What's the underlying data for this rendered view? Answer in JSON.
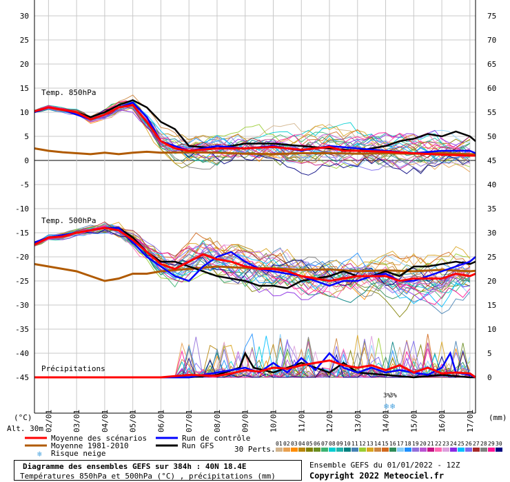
{
  "chart_data": {
    "type": "line",
    "title": "Diagramme des ensembles GEFS sur 384h : 40N 18.4E",
    "subtitle": "Températures 850hPa et 500hPa (°C) , précipitations (mm)",
    "left_axis": {
      "unit": "(°C)",
      "ticks": [
        30,
        25,
        20,
        15,
        10,
        5,
        0,
        -5,
        -10,
        -15,
        -20,
        -25,
        -30,
        -35,
        -40,
        -45
      ],
      "range": [
        -45,
        30
      ]
    },
    "right_axis": {
      "unit": "(mm)",
      "ticks": [
        75,
        70,
        65,
        60,
        55,
        50,
        45,
        40,
        35,
        30,
        25,
        20,
        15,
        10,
        5,
        0
      ],
      "range": [
        0,
        75
      ]
    },
    "altitude": "Alt. 30m",
    "x_ticks": [
      "02/01",
      "03/01",
      "04/01",
      "05/01",
      "06/01",
      "07/01",
      "08/01",
      "09/01",
      "10/01",
      "11/01",
      "12/01",
      "13/01",
      "14/01",
      "15/01",
      "16/01",
      "17/01"
    ],
    "x_range_days": [
      1.5,
      17.2
    ],
    "panel_labels": {
      "t850": "Temp. 850hPa",
      "t500": "Temp. 500hPa",
      "precip": "Précipitations"
    },
    "snow_marker": {
      "label": "3%",
      "day": 14.3
    },
    "series": [
      {
        "name": "Moyenne des scénarios",
        "color": "#ff0000",
        "width": 3,
        "t850": [
          [
            1.5,
            10.2
          ],
          [
            2,
            11
          ],
          [
            2.5,
            10.5
          ],
          [
            3,
            10
          ],
          [
            3.5,
            8.5
          ],
          [
            4,
            9.5
          ],
          [
            4.5,
            11
          ],
          [
            5,
            11.5
          ],
          [
            5.5,
            8
          ],
          [
            6,
            4
          ],
          [
            6.5,
            2.5
          ],
          [
            7,
            2
          ],
          [
            8,
            2.5
          ],
          [
            9,
            2.5
          ],
          [
            10,
            2.8
          ],
          [
            11,
            2.2
          ],
          [
            12,
            2.8
          ],
          [
            12.5,
            2
          ],
          [
            13,
            2
          ],
          [
            14,
            1.8
          ],
          [
            15,
            1.5
          ],
          [
            16,
            1.2
          ],
          [
            17,
            1
          ],
          [
            17.2,
            1
          ]
        ],
        "t500": [
          [
            1.5,
            -17.5
          ],
          [
            2,
            -16
          ],
          [
            2.5,
            -15.8
          ],
          [
            3,
            -15
          ],
          [
            3.5,
            -14.5
          ],
          [
            4,
            -14
          ],
          [
            4.5,
            -14.5
          ],
          [
            5,
            -16.5
          ],
          [
            5.5,
            -19
          ],
          [
            6,
            -21.5
          ],
          [
            6.5,
            -22.5
          ],
          [
            7,
            -21
          ],
          [
            7.5,
            -19.5
          ],
          [
            8,
            -20.5
          ],
          [
            8.5,
            -21
          ],
          [
            9,
            -22
          ],
          [
            9.5,
            -22.5
          ],
          [
            10,
            -22.5
          ],
          [
            10.5,
            -23
          ],
          [
            11,
            -24
          ],
          [
            11.5,
            -24.5
          ],
          [
            12,
            -25
          ],
          [
            12.5,
            -24.5
          ],
          [
            13,
            -24
          ],
          [
            14,
            -24
          ],
          [
            14.5,
            -25
          ],
          [
            15,
            -24.5
          ],
          [
            15.5,
            -24.5
          ],
          [
            16,
            -24.5
          ],
          [
            16.5,
            -23.5
          ],
          [
            17,
            -24
          ],
          [
            17.2,
            -23.5
          ]
        ],
        "precip": [
          [
            1.5,
            0
          ],
          [
            6,
            0
          ],
          [
            7,
            0.5
          ],
          [
            8,
            0.3
          ],
          [
            8.5,
            0.8
          ],
          [
            9,
            1.5
          ],
          [
            9.5,
            1.2
          ],
          [
            10,
            2
          ],
          [
            10.5,
            1.8
          ],
          [
            11,
            2.5
          ],
          [
            11.5,
            3
          ],
          [
            12,
            3.5
          ],
          [
            12.5,
            2.5
          ],
          [
            13,
            2
          ],
          [
            13.5,
            2.5
          ],
          [
            14,
            1.5
          ],
          [
            14.5,
            2.5
          ],
          [
            15,
            1
          ],
          [
            15.5,
            2
          ],
          [
            16,
            0.8
          ],
          [
            16.5,
            1
          ],
          [
            17,
            0.8
          ],
          [
            17.2,
            0
          ]
        ]
      },
      {
        "name": "Moyenne 1981-2010",
        "color": "#b05a00",
        "width": 3,
        "t850": [
          [
            1.5,
            2.5
          ],
          [
            2,
            2
          ],
          [
            2.5,
            1.7
          ],
          [
            3,
            1.5
          ],
          [
            3.5,
            1.3
          ],
          [
            4,
            1.6
          ],
          [
            4.5,
            1.3
          ],
          [
            5,
            1.6
          ],
          [
            5.5,
            1.8
          ],
          [
            6,
            1.6
          ],
          [
            7,
            1.7
          ],
          [
            8,
            1.6
          ],
          [
            9,
            1.4
          ],
          [
            10,
            1.3
          ],
          [
            11,
            1.5
          ],
          [
            12,
            1.5
          ],
          [
            13,
            1.4
          ],
          [
            14,
            1.5
          ],
          [
            15,
            1.4
          ],
          [
            16,
            1.5
          ],
          [
            17,
            1.3
          ],
          [
            17.2,
            1.3
          ]
        ],
        "t500": [
          [
            1.5,
            -21.5
          ],
          [
            2,
            -22
          ],
          [
            2.5,
            -22.5
          ],
          [
            3,
            -23
          ],
          [
            3.5,
            -24
          ],
          [
            4,
            -25
          ],
          [
            4.5,
            -24.5
          ],
          [
            5,
            -23.5
          ],
          [
            5.5,
            -23.5
          ],
          [
            6,
            -23
          ],
          [
            7,
            -22.5
          ],
          [
            8,
            -22
          ],
          [
            9,
            -22.3
          ],
          [
            10,
            -22.4
          ],
          [
            11,
            -22.7
          ],
          [
            12,
            -22.6
          ],
          [
            13,
            -23
          ],
          [
            14,
            -22.8
          ],
          [
            15,
            -23
          ],
          [
            16,
            -22.7
          ],
          [
            17,
            -23
          ],
          [
            17.2,
            -22.9
          ]
        ]
      },
      {
        "name": "Run de contrôle",
        "color": "#0000ff",
        "width": 2.5,
        "t850": [
          [
            1.5,
            10
          ],
          [
            2,
            11
          ],
          [
            2.5,
            10.5
          ],
          [
            3,
            9.5
          ],
          [
            3.5,
            8.5
          ],
          [
            4,
            9.5
          ],
          [
            4.5,
            11
          ],
          [
            5,
            12
          ],
          [
            5.5,
            9
          ],
          [
            6,
            4
          ],
          [
            6.5,
            3
          ],
          [
            7,
            2
          ],
          [
            8,
            3
          ],
          [
            9,
            2.5
          ],
          [
            10,
            3
          ],
          [
            11,
            2
          ],
          [
            12,
            3
          ],
          [
            13,
            2.5
          ],
          [
            14,
            2
          ],
          [
            15,
            1.5
          ],
          [
            16,
            2
          ],
          [
            17,
            2
          ],
          [
            17.2,
            1.5
          ]
        ],
        "t500": [
          [
            1.5,
            -17
          ],
          [
            2,
            -16
          ],
          [
            2.5,
            -15.5
          ],
          [
            3,
            -15
          ],
          [
            3.5,
            -14.5
          ],
          [
            4,
            -14
          ],
          [
            4.5,
            -14
          ],
          [
            5,
            -17
          ],
          [
            5.5,
            -20
          ],
          [
            6,
            -22
          ],
          [
            6.5,
            -24
          ],
          [
            7,
            -25
          ],
          [
            7.5,
            -22
          ],
          [
            8,
            -20
          ],
          [
            8.5,
            -19
          ],
          [
            9,
            -21
          ],
          [
            9.5,
            -22.5
          ],
          [
            10,
            -23
          ],
          [
            10.5,
            -23.5
          ],
          [
            11,
            -24
          ],
          [
            12,
            -26
          ],
          [
            12.5,
            -25
          ],
          [
            13,
            -25
          ],
          [
            13.5,
            -24
          ],
          [
            14,
            -23.5
          ],
          [
            14.5,
            -25
          ],
          [
            15,
            -25
          ],
          [
            15.5,
            -24
          ],
          [
            16,
            -23
          ],
          [
            16.5,
            -22
          ],
          [
            17,
            -21
          ],
          [
            17.2,
            -20
          ]
        ],
        "precip": [
          [
            1.5,
            0
          ],
          [
            7,
            0
          ],
          [
            8,
            1
          ],
          [
            9,
            2
          ],
          [
            9.5,
            1
          ],
          [
            10,
            3
          ],
          [
            10.5,
            1
          ],
          [
            11,
            4
          ],
          [
            11.5,
            1.5
          ],
          [
            12,
            5
          ],
          [
            12.5,
            2
          ],
          [
            13,
            1
          ],
          [
            13.5,
            2
          ],
          [
            14,
            1
          ],
          [
            14.5,
            1.5
          ],
          [
            15,
            1
          ],
          [
            15.5,
            0.5
          ],
          [
            16,
            2
          ],
          [
            16.3,
            5
          ],
          [
            16.5,
            1
          ],
          [
            17,
            0.5
          ],
          [
            17.2,
            0
          ]
        ]
      },
      {
        "name": "Run GFS",
        "color": "#000000",
        "width": 2.5,
        "t850": [
          [
            1.5,
            10
          ],
          [
            2,
            11
          ],
          [
            2.5,
            10.5
          ],
          [
            3,
            10
          ],
          [
            3.5,
            9
          ],
          [
            4,
            10
          ],
          [
            4.5,
            11.5
          ],
          [
            5,
            12.5
          ],
          [
            5.5,
            11
          ],
          [
            6,
            8
          ],
          [
            6.5,
            6.5
          ],
          [
            7,
            3
          ],
          [
            8,
            2.5
          ],
          [
            9,
            3.5
          ],
          [
            10,
            3.5
          ],
          [
            11,
            3
          ],
          [
            12,
            2.5
          ],
          [
            13,
            2
          ],
          [
            14,
            3
          ],
          [
            14.5,
            4
          ],
          [
            15,
            4.5
          ],
          [
            15.5,
            5.5
          ],
          [
            16,
            5
          ],
          [
            16.5,
            6
          ],
          [
            17,
            5
          ],
          [
            17.2,
            4
          ]
        ],
        "t500": [
          [
            1.5,
            -17
          ],
          [
            2,
            -16
          ],
          [
            2.5,
            -15.5
          ],
          [
            3,
            -15
          ],
          [
            3.5,
            -14.5
          ],
          [
            4,
            -14
          ],
          [
            4.5,
            -14
          ],
          [
            5,
            -16
          ],
          [
            5.5,
            -19
          ],
          [
            6,
            -21
          ],
          [
            6.5,
            -21
          ],
          [
            7,
            -22
          ],
          [
            7.5,
            -23
          ],
          [
            8,
            -24
          ],
          [
            8.5,
            -24.5
          ],
          [
            9,
            -25
          ],
          [
            9.5,
            -26
          ],
          [
            10,
            -26
          ],
          [
            10.5,
            -26.5
          ],
          [
            11,
            -25
          ],
          [
            12,
            -24
          ],
          [
            12.5,
            -23
          ],
          [
            13,
            -24
          ],
          [
            13.5,
            -24
          ],
          [
            14,
            -23
          ],
          [
            14.5,
            -24
          ],
          [
            15,
            -22
          ],
          [
            15.5,
            -22
          ],
          [
            16,
            -21.5
          ],
          [
            16.5,
            -21
          ],
          [
            17,
            -21.5
          ],
          [
            17.2,
            -21
          ]
        ],
        "precip": [
          [
            1.5,
            0
          ],
          [
            7,
            0
          ],
          [
            8,
            0.5
          ],
          [
            8.8,
            2
          ],
          [
            9,
            5
          ],
          [
            9.3,
            2
          ],
          [
            10,
            1
          ],
          [
            11,
            3
          ],
          [
            12,
            1
          ],
          [
            12.5,
            3
          ],
          [
            13,
            1
          ],
          [
            14,
            0.5
          ],
          [
            15,
            0
          ],
          [
            16,
            0.5
          ],
          [
            17,
            0
          ],
          [
            17.2,
            0
          ]
        ]
      }
    ],
    "perturbations": {
      "label": "30 Perts.",
      "labels": [
        "01",
        "02",
        "03",
        "04",
        "05",
        "06",
        "07",
        "08",
        "09",
        "10",
        "11",
        "12",
        "13",
        "14",
        "15",
        "16",
        "17",
        "18",
        "19",
        "20",
        "21",
        "22",
        "23",
        "24",
        "25",
        "26",
        "27",
        "28",
        "29",
        "30"
      ],
      "colors": [
        "#d2b48c",
        "#e8a050",
        "#ff8c00",
        "#b8860b",
        "#808000",
        "#6b8e23",
        "#3cb371",
        "#00ced1",
        "#20b2aa",
        "#008080",
        "#4682b4",
        "#9acd32",
        "#daa520",
        "#cd853f",
        "#d2691e",
        "#2e8b57",
        "#87cefa",
        "#1e90ff",
        "#9370db",
        "#ba55d3",
        "#c71585",
        "#ff69b4",
        "#dda0dd",
        "#8a2be2",
        "#00bfff",
        "#7b68ee",
        "#a52a2a",
        "#808080",
        "#ff1493",
        "#000080"
      ]
    }
  },
  "legend": {
    "mean_label": "Moyenne des scénarios",
    "climatology_label": "Moyenne 1981-2010",
    "control_label": "Run de contrôle",
    "gfs_label": "Run GFS",
    "snow_label": "Risque neige",
    "mean_color": "#ff0000",
    "climatology_color": "#b05a00",
    "control_color": "#0000ff",
    "gfs_color": "#000000"
  },
  "footer": {
    "title": "Diagramme des ensembles GEFS sur 384h : 40N 18.4E",
    "subtitle": "Températures 850hPa et 500hPa (°C) , précipitations (mm)",
    "ensemble_label": "Ensemble GEFS du 01/01/2022 - 12Z",
    "copyright": "Copyright 2022 Meteociel.fr"
  }
}
